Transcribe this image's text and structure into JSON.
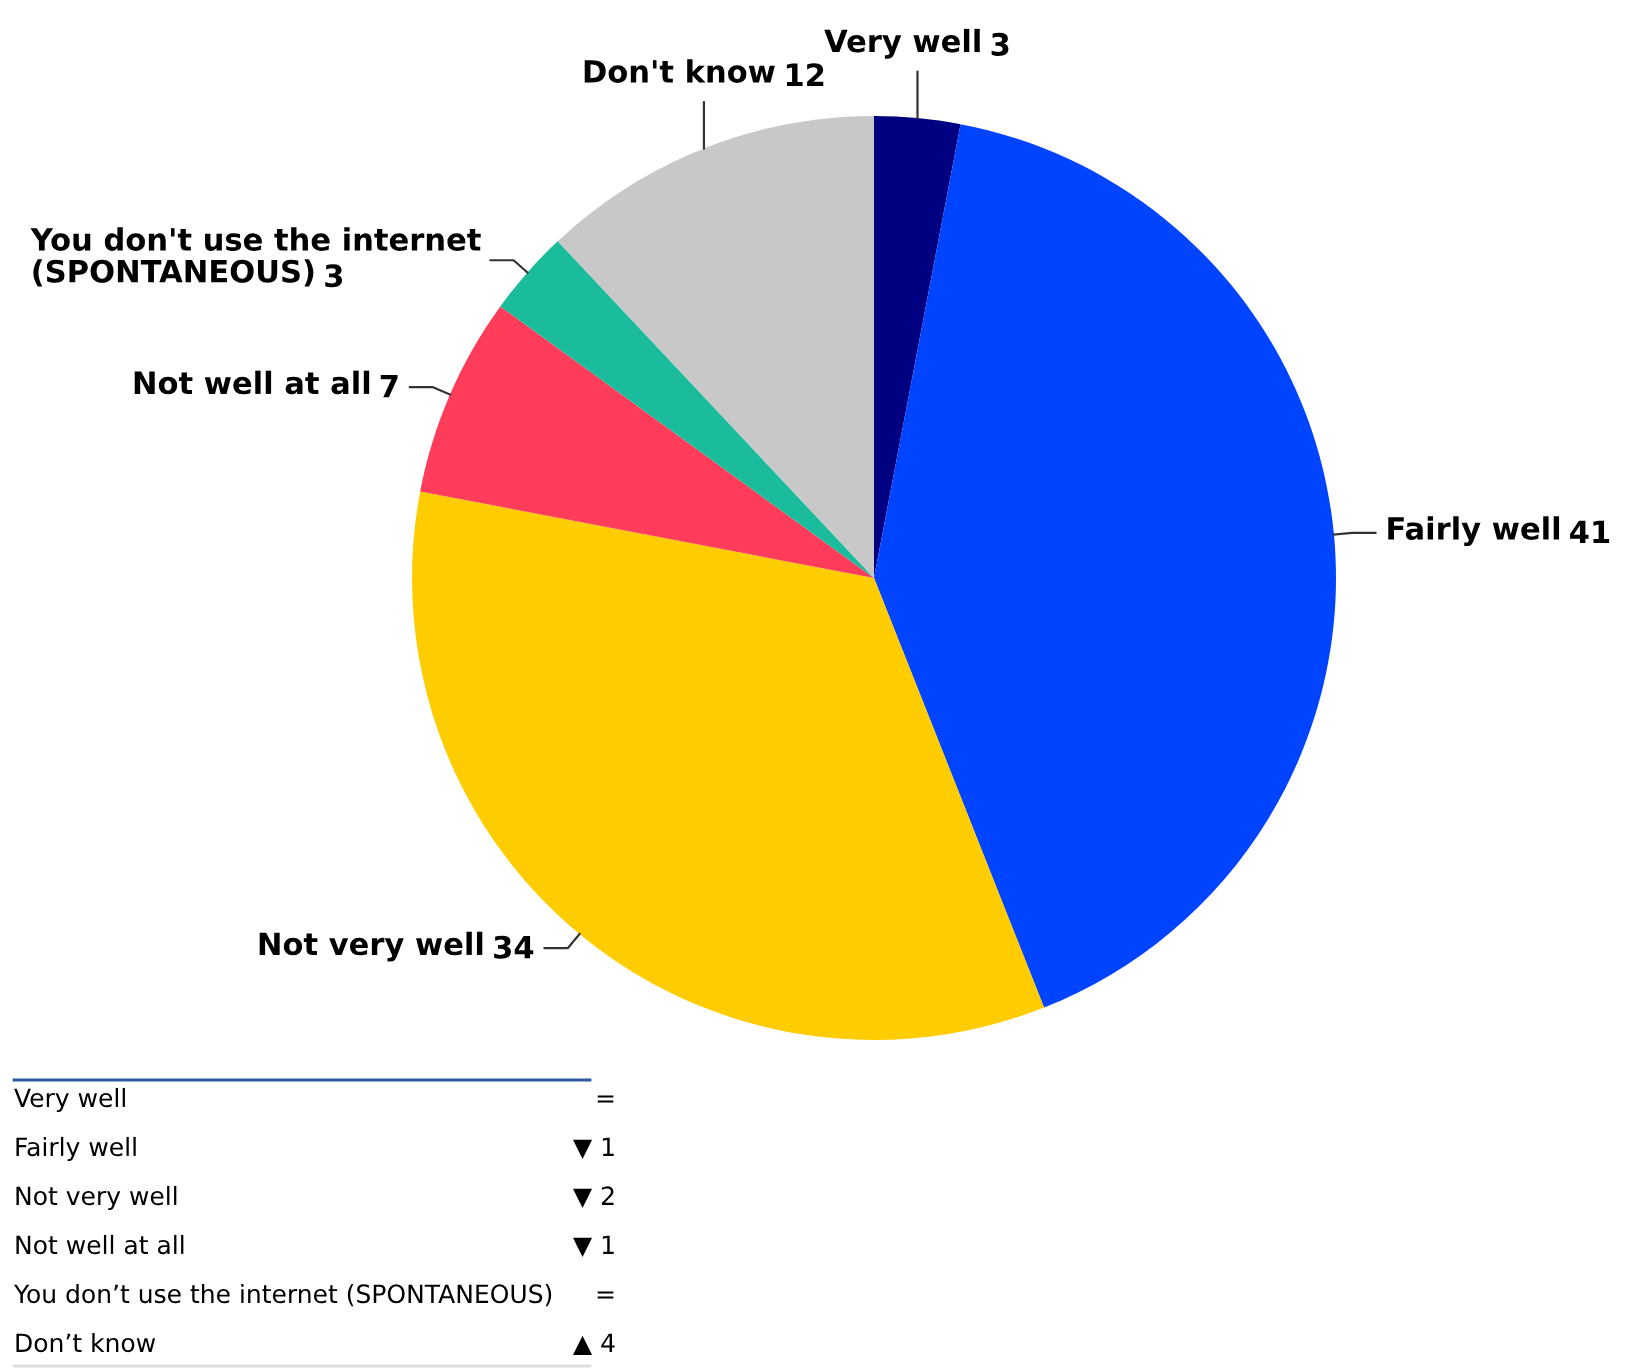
{
  "chart_data": {
    "type": "pie",
    "categories": [
      "Very well",
      "Fairly well",
      "Not very well",
      "Not well at all",
      "You don't use the internet\n(SPONTANEOUS)",
      "Don't know"
    ],
    "values": [
      3,
      41,
      34,
      7,
      3,
      12
    ],
    "colors": [
      "#000080",
      "#0044ff",
      "#ffcc00",
      "#ff3d5a",
      "#1abc9c",
      "#c8c8c8"
    ],
    "data_labels": true,
    "annotations": [
      "Very well",
      "=",
      "Fairly well",
      "▼ 1",
      "Not very well",
      "▼ 2",
      "Not well at all",
      "▼ 1",
      "You don’t use the internet (SPONTANEOUS)",
      "=",
      "Don’t know",
      "▲ 4"
    ]
  }
}
